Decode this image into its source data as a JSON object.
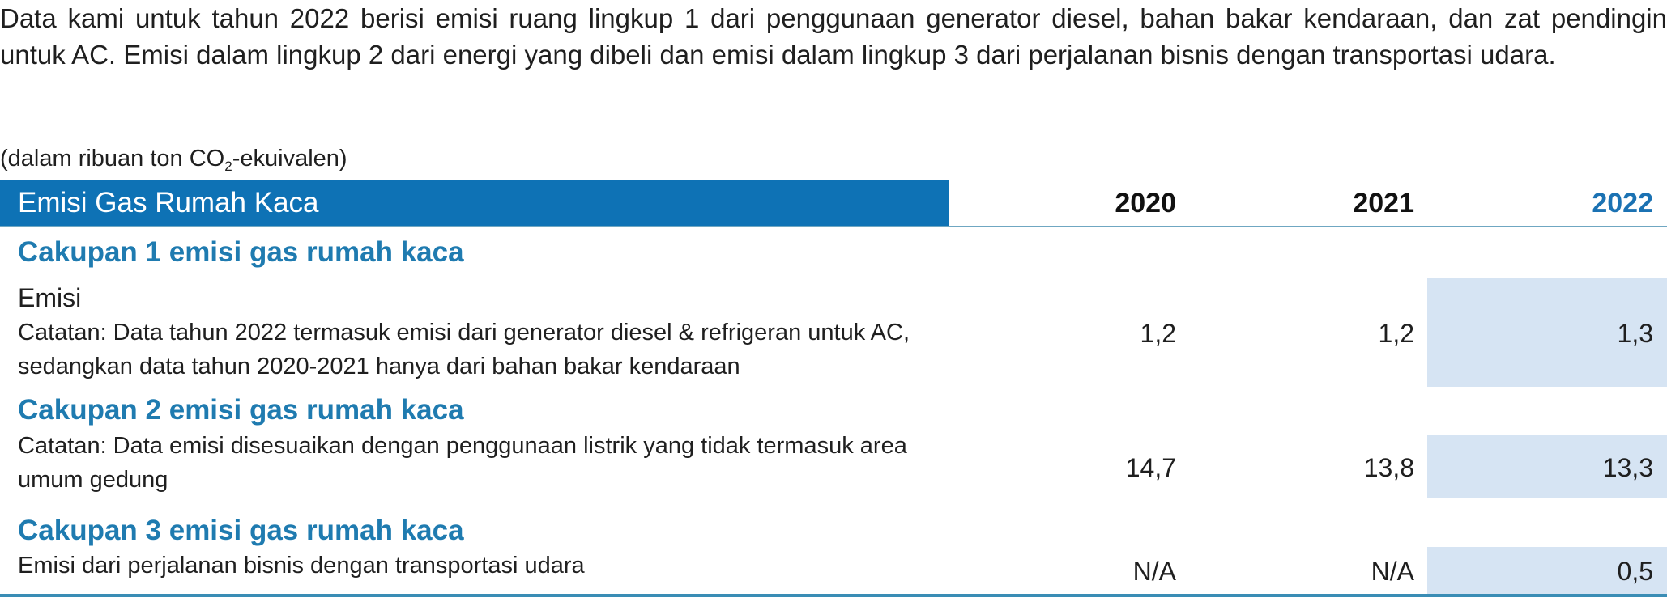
{
  "intro": "Data kami untuk tahun 2022 berisi emisi ruang lingkup 1 dari penggunaan generator diesel, bahan bakar kendaraan, dan zat pendingin untuk AC. Emisi dalam lingkup 2 dari energi yang dibeli dan emisi dalam lingkup 3 dari perjalanan bisnis dengan transportasi udara.",
  "unit": {
    "prefix": "(dalam ribuan ton CO",
    "subscript": "2",
    "suffix": "-ekuivalen)"
  },
  "table": {
    "header": "Emisi Gas Rumah Kaca",
    "years": [
      "2020",
      "2021",
      "2022"
    ],
    "sections": [
      {
        "title": "Cakupan 1 emisi gas rumah kaca",
        "label": "Emisi",
        "note": "Catatan: Data tahun 2022 termasuk emisi dari generator diesel & refrigeran untuk AC, sedangkan data tahun 2020-2021 hanya dari bahan bakar kendaraan",
        "values": [
          "1,2",
          "1,2",
          "1,3"
        ]
      },
      {
        "title": "Cakupan 2 emisi gas rumah kaca",
        "note": "Catatan: Data emisi disesuaikan dengan penggunaan listrik yang tidak termasuk area umum gedung",
        "values": [
          "14,7",
          "13,8",
          "13,3"
        ]
      },
      {
        "title": "Cakupan 3 emisi gas rumah kaca",
        "note": "Emisi dari perjalanan bisnis dengan transportasi udara",
        "values": [
          "N/A",
          "N/A",
          "0,5"
        ]
      }
    ]
  },
  "colors": {
    "header_bg": "#0e72b5",
    "section_title": "#1f7bb0",
    "highlight_column": "#d6e4f3",
    "accent_year": "#1b72b3"
  }
}
